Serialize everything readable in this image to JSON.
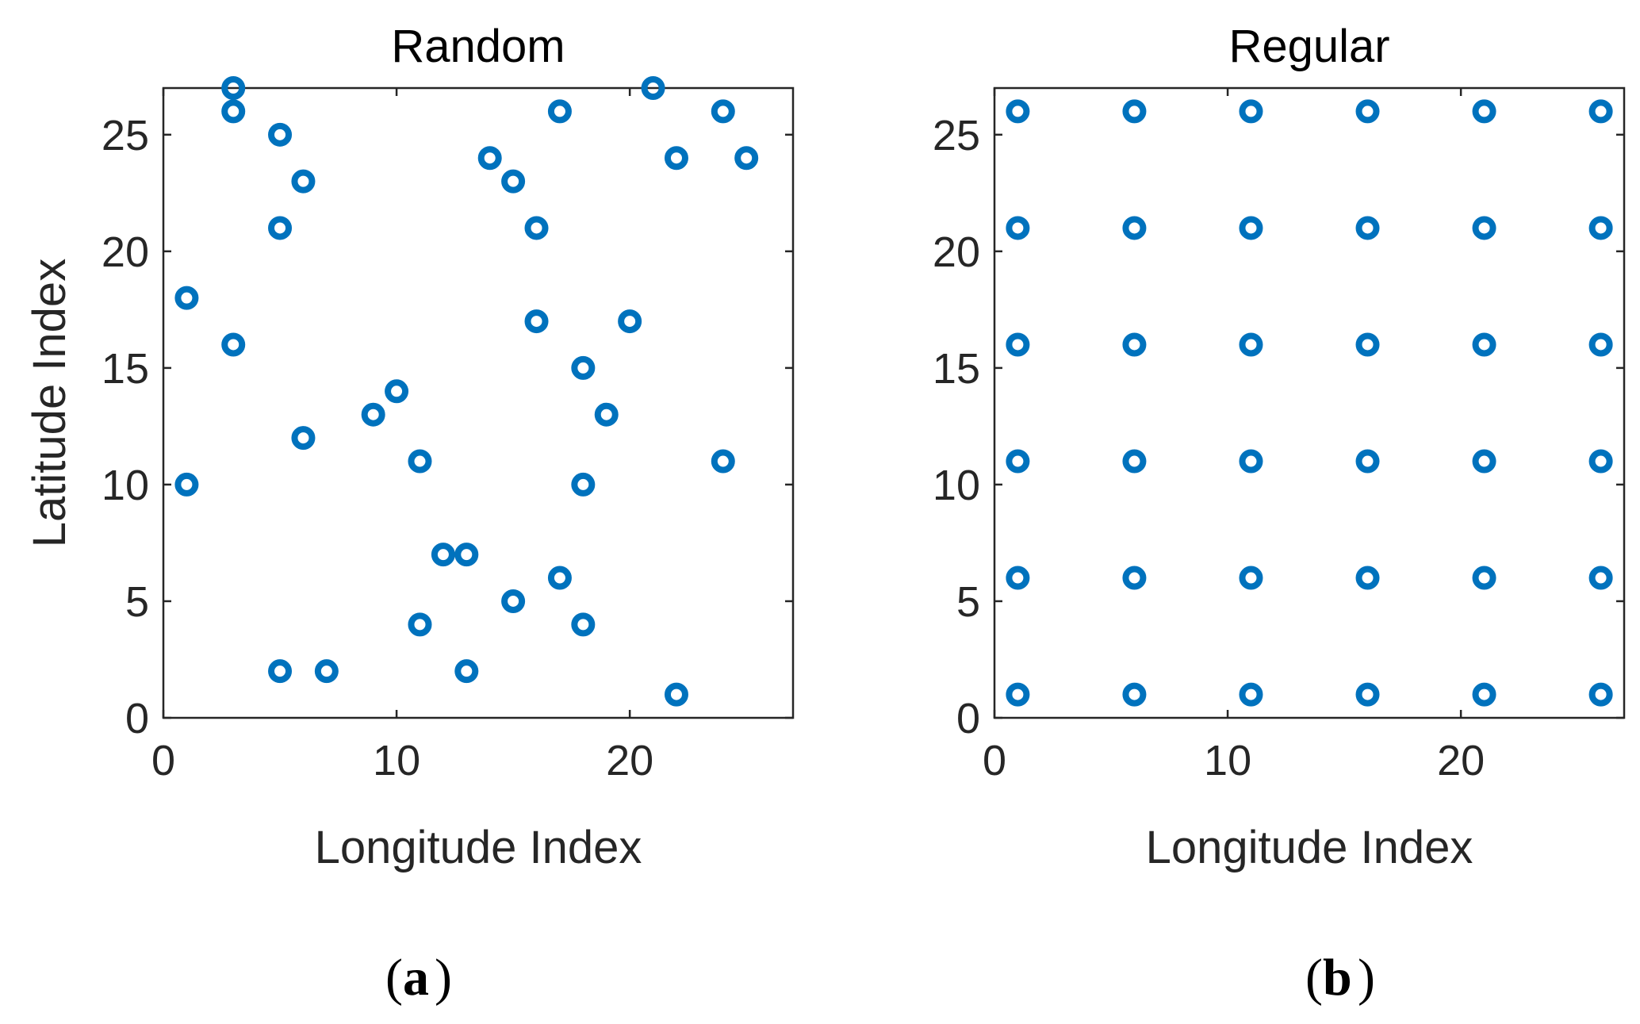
{
  "chart_data": [
    {
      "type": "scatter",
      "title": "Random",
      "xlabel": "Longitude Index",
      "ylabel": "Latitude Index",
      "caption": "a",
      "xlim": [
        0,
        27
      ],
      "ylim": [
        0,
        27
      ],
      "xticks": [
        0,
        10,
        20
      ],
      "yticks": [
        0,
        5,
        10,
        15,
        20,
        25
      ],
      "marker": "circle-open",
      "color": "#0072BD",
      "points": [
        [
          3,
          27
        ],
        [
          3,
          26
        ],
        [
          5,
          25
        ],
        [
          6,
          23
        ],
        [
          5,
          21
        ],
        [
          1,
          18
        ],
        [
          3,
          16
        ],
        [
          6,
          12
        ],
        [
          1,
          10
        ],
        [
          5,
          2
        ],
        [
          7,
          2
        ],
        [
          9,
          13
        ],
        [
          10,
          14
        ],
        [
          11,
          11
        ],
        [
          11,
          4
        ],
        [
          12,
          7
        ],
        [
          13,
          7
        ],
        [
          13,
          2
        ],
        [
          14,
          24
        ],
        [
          15,
          23
        ],
        [
          15,
          5
        ],
        [
          16,
          21
        ],
        [
          16,
          17
        ],
        [
          17,
          26
        ],
        [
          17,
          6
        ],
        [
          18,
          15
        ],
        [
          18,
          10
        ],
        [
          18,
          4
        ],
        [
          19,
          13
        ],
        [
          20,
          17
        ],
        [
          21,
          27
        ],
        [
          22,
          24
        ],
        [
          22,
          1
        ],
        [
          24,
          26
        ],
        [
          24,
          11
        ],
        [
          25,
          24
        ]
      ]
    },
    {
      "type": "scatter",
      "title": "Regular",
      "xlabel": "Longitude Index",
      "ylabel": "",
      "caption": "b",
      "xlim": [
        0,
        27
      ],
      "ylim": [
        0,
        27
      ],
      "xticks": [
        0,
        10,
        20
      ],
      "yticks": [
        0,
        5,
        10,
        15,
        20,
        25
      ],
      "marker": "circle-open",
      "color": "#0072BD",
      "points": [
        [
          1,
          1
        ],
        [
          6,
          1
        ],
        [
          11,
          1
        ],
        [
          16,
          1
        ],
        [
          21,
          1
        ],
        [
          26,
          1
        ],
        [
          1,
          6
        ],
        [
          6,
          6
        ],
        [
          11,
          6
        ],
        [
          16,
          6
        ],
        [
          21,
          6
        ],
        [
          26,
          6
        ],
        [
          1,
          11
        ],
        [
          6,
          11
        ],
        [
          11,
          11
        ],
        [
          16,
          11
        ],
        [
          21,
          11
        ],
        [
          26,
          11
        ],
        [
          1,
          16
        ],
        [
          6,
          16
        ],
        [
          11,
          16
        ],
        [
          16,
          16
        ],
        [
          21,
          16
        ],
        [
          26,
          16
        ],
        [
          1,
          21
        ],
        [
          6,
          21
        ],
        [
          11,
          21
        ],
        [
          16,
          21
        ],
        [
          21,
          21
        ],
        [
          26,
          21
        ],
        [
          1,
          26
        ],
        [
          6,
          26
        ],
        [
          11,
          26
        ],
        [
          16,
          26
        ],
        [
          21,
          26
        ],
        [
          26,
          26
        ]
      ]
    }
  ]
}
